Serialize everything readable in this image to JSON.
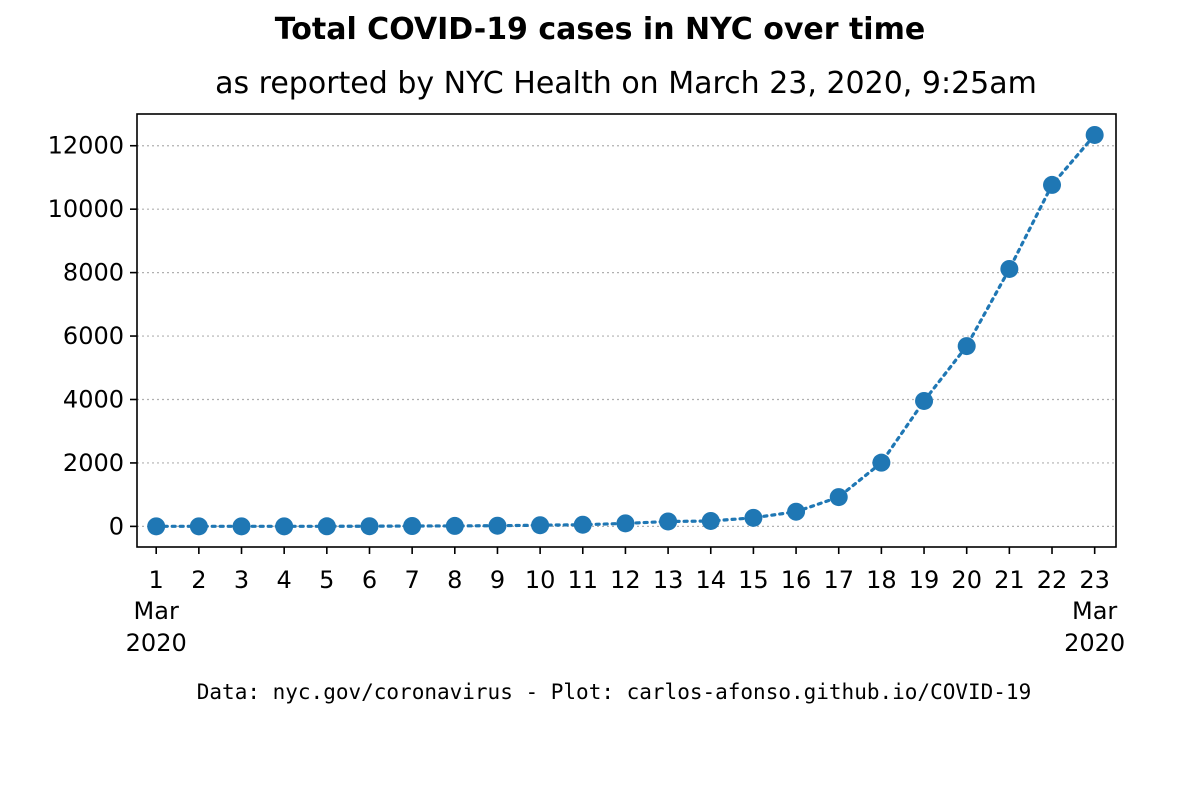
{
  "title": "Total COVID-19 cases in NYC over time",
  "subtitle": "as reported by NYC Health on March 23, 2020, 9:25am",
  "footer": "Data: nyc.gov/coronavirus - Plot: carlos-afonso.github.io/COVID-19",
  "chart_data": {
    "type": "line",
    "title": "Total COVID-19 cases in NYC over time",
    "subtitle": "as reported by NYC Health on March 23, 2020, 9:25am",
    "xlabel": "",
    "ylabel": "",
    "x": [
      1,
      2,
      3,
      4,
      5,
      6,
      7,
      8,
      9,
      10,
      11,
      12,
      13,
      14,
      15,
      16,
      17,
      18,
      19,
      20,
      21,
      22,
      23
    ],
    "x_tick_labels": [
      "1",
      "2",
      "3",
      "4",
      "5",
      "6",
      "7",
      "8",
      "9",
      "10",
      "11",
      "12",
      "13",
      "14",
      "15",
      "16",
      "17",
      "18",
      "19",
      "20",
      "21",
      "22",
      "23"
    ],
    "x_tick_sublabels": [
      {
        "x": 1,
        "month": "Mar",
        "year": "2020"
      },
      {
        "x": 23,
        "month": "Mar",
        "year": "2020"
      }
    ],
    "series": [
      {
        "values": [
          1,
          1,
          1,
          2,
          4,
          5,
          12,
          14,
          20,
          36,
          52,
          95,
          154,
          170,
          269,
          463,
          923,
          2009,
          3954,
          5683,
          8115,
          10764,
          12339
        ],
        "color": "#1f77b4",
        "line_style": "dotted",
        "marker": "circle"
      }
    ],
    "ylim": [
      -650,
      13000
    ],
    "y_ticks": [
      0,
      2000,
      4000,
      6000,
      8000,
      10000,
      12000
    ],
    "y_tick_labels": [
      "0",
      "2000",
      "4000",
      "6000",
      "8000",
      "10000",
      "12000"
    ],
    "xlim": [
      0.55,
      23.5
    ],
    "grid": "horizontal-dotted"
  }
}
